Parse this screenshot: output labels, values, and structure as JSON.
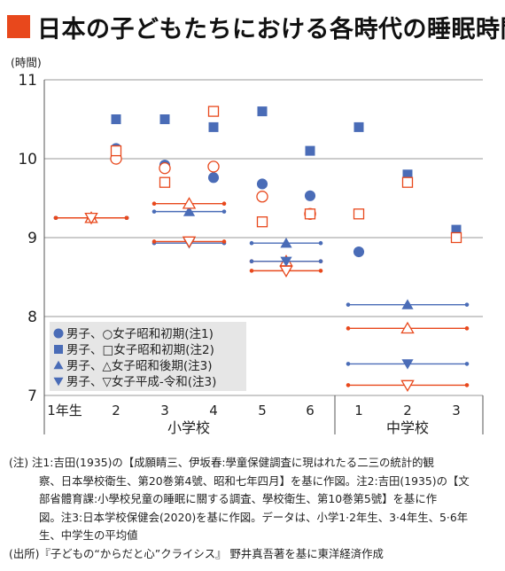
{
  "title": "日本の子どもたちにおける各時代の睡眠時間",
  "colors": {
    "accent": "#e8481c",
    "blue": "#4a6cb7",
    "red": "#e8481c",
    "grid": "#999999",
    "legend_bg": "#e6e6e6"
  },
  "chart_data": {
    "type": "scatter",
    "ylabel": "(時間)",
    "ylim": [
      7,
      11
    ],
    "yticks": [
      "7",
      "8",
      "9",
      "10",
      "11"
    ],
    "categories": [
      "1年生",
      "2",
      "3",
      "4",
      "5",
      "6",
      "1",
      "2",
      "3"
    ],
    "groups": [
      {
        "label": "小学校",
        "categories": [
          "1年生",
          "2",
          "3",
          "4",
          "5",
          "6"
        ]
      },
      {
        "label": "中学校",
        "categories": [
          "1",
          "2",
          "3"
        ]
      }
    ],
    "legend": [
      {
        "marker": "circle",
        "text": "男子、○女子昭和初期(注1)"
      },
      {
        "marker": "square",
        "text": "男子、□女子昭和初期(注2)"
      },
      {
        "marker": "triangle-up",
        "text": "男子、△女子昭和後期(注3)"
      },
      {
        "marker": "triangle-down",
        "text": "男子、▽女子平成-令和(注3)"
      }
    ],
    "series": [
      {
        "marker": "circle",
        "sex": "男子",
        "values": [
          null,
          10.13,
          9.92,
          9.76,
          9.68,
          9.53,
          8.82,
          null,
          null
        ]
      },
      {
        "marker": "circle",
        "sex": "女子",
        "values": [
          null,
          10.0,
          9.88,
          9.9,
          9.52,
          9.3,
          null,
          null,
          null
        ]
      },
      {
        "marker": "square",
        "sex": "男子",
        "values": [
          null,
          10.5,
          10.5,
          10.4,
          10.6,
          10.1,
          10.4,
          9.8,
          9.1
        ]
      },
      {
        "marker": "square",
        "sex": "女子",
        "values": [
          null,
          10.1,
          9.7,
          10.6,
          9.2,
          9.3,
          9.3,
          9.7,
          9.0
        ]
      },
      {
        "marker": "triangle-up",
        "sex": "男子",
        "span_values": [
          [
            9.25,
            9.25
          ],
          [
            9.33,
            9.33
          ],
          [
            8.93,
            8.93
          ],
          [
            8.15,
            8.15,
            8.15
          ]
        ]
      },
      {
        "marker": "triangle-up",
        "sex": "女子",
        "span_values": [
          [
            9.25,
            9.25
          ],
          [
            9.43,
            9.43
          ],
          [
            8.7,
            8.7
          ],
          [
            7.85,
            7.85,
            7.85
          ]
        ]
      },
      {
        "marker": "triangle-down",
        "sex": "男子",
        "span_values": [
          [
            9.25,
            9.25
          ],
          [
            8.93,
            8.93
          ],
          [
            8.7,
            8.7
          ],
          [
            7.4,
            7.4,
            7.4
          ]
        ]
      },
      {
        "marker": "triangle-down",
        "sex": "女子",
        "span_values": [
          [
            9.25,
            9.25
          ],
          [
            8.95,
            8.95
          ],
          [
            8.58,
            8.58
          ],
          [
            7.13,
            7.13,
            7.13
          ]
        ]
      }
    ]
  },
  "notes": {
    "line1": "(注) 注1:吉田(1935)の【成願睛三、伊坂春:學童保健調査に現はれたる二三の統計的観",
    "line2": "察、日本學校衛生、第20巻第4號、昭和七年四月】を基に作図。注2:吉田(1935)の【文",
    "line3": "部省體育課:小學校兒童の睡眠に關する調査、學校衛生、第10巻第5號】を基に作",
    "line4": "図。注3:日本学校保健会(2020)を基に作図。データは、小学1·2年生、3·4年生、5·6年",
    "line5": "生、中学生の平均値",
    "source": "(出所)『子どもの“からだと心”クライシス』 野井真吾著を基に東洋経済作成"
  }
}
